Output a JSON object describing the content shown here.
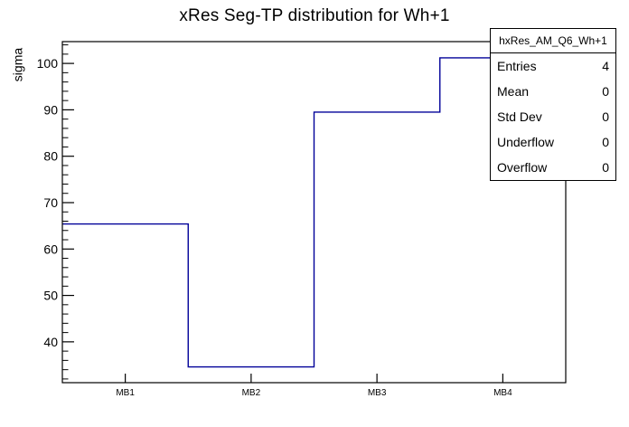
{
  "page": {
    "title": "xRes Seg-TP distribution for Wh+1"
  },
  "stats_box": {
    "header": "hxRes_AM_Q6_Wh+1",
    "rows": [
      {
        "label": "Entries",
        "value": "4"
      },
      {
        "label": "Mean",
        "value": "0"
      },
      {
        "label": "Std Dev",
        "value": "0"
      },
      {
        "label": "Underflow",
        "value": "0"
      },
      {
        "label": "Overflow",
        "value": "0"
      }
    ]
  },
  "chart_data": {
    "type": "bar",
    "subtype": "step-histogram-outline",
    "title": "xRes Seg-TP distribution for Wh+1",
    "categories": [
      "MB1",
      "MB2",
      "MB3",
      "MB4"
    ],
    "values": [
      65.4,
      34.6,
      89.5,
      101.2
    ],
    "xlabel": "",
    "ylabel": "sigma",
    "ylim": [
      31.2,
      104.7
    ],
    "y_major_ticks": [
      40,
      50,
      60,
      70,
      80,
      90,
      100
    ],
    "y_minor_step": 2,
    "grid": false,
    "legend_position": "none"
  },
  "colors": {
    "histogram_line": "#000099",
    "axis": "#000000",
    "background": "#ffffff",
    "stats_fill": "#ffffff"
  }
}
